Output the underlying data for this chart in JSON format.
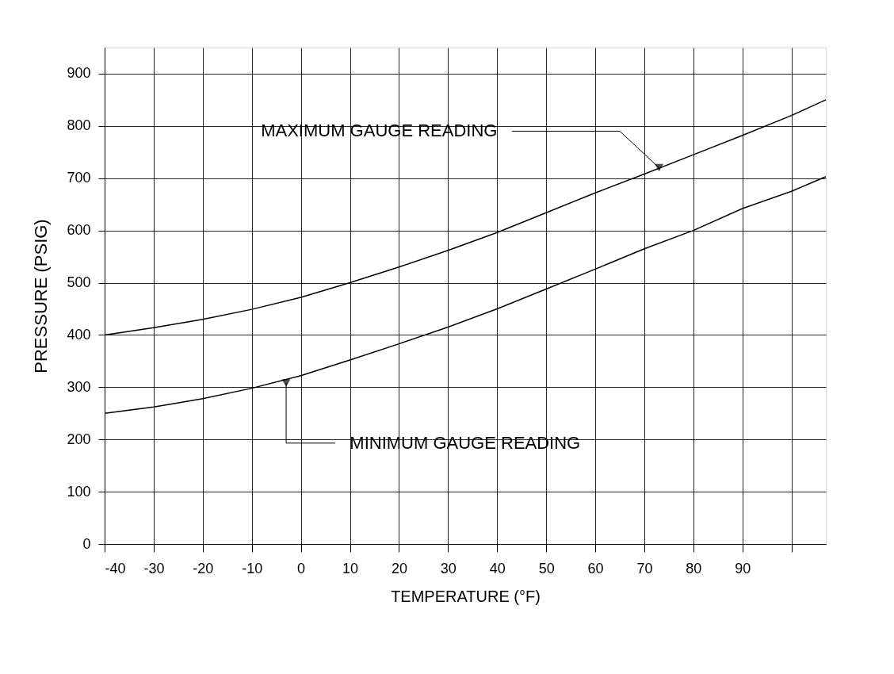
{
  "chart_data": {
    "type": "line",
    "xlabel": "TEMPERATURE (°F)",
    "ylabel": "PRESSURE (PSIG)",
    "x": [
      -40,
      -30,
      -20,
      -10,
      0,
      10,
      20,
      30,
      40,
      50,
      60,
      70,
      80,
      90,
      100,
      107
    ],
    "series": [
      {
        "color": "#000000",
        "values": [
          400,
          414,
          430,
          449,
          472,
          500,
          530,
          562,
          596,
          634,
          672,
          708,
          745,
          782,
          820,
          850
        ]
      },
      {
        "color": "#000000",
        "values": [
          250,
          262,
          278,
          298,
          322,
          352,
          383,
          415,
          450,
          488,
          526,
          565,
          600,
          642,
          675,
          703
        ]
      }
    ],
    "xlim": [
      -40,
      107
    ],
    "xticks": [
      -40,
      -30,
      -20,
      -10,
      0,
      10,
      20,
      30,
      40,
      50,
      60,
      70,
      80,
      90
    ],
    "ylim": [
      0,
      950
    ],
    "yticks": [
      0,
      100,
      200,
      300,
      400,
      500,
      600,
      700,
      800,
      900
    ],
    "grid": true,
    "marker": "none",
    "line_style": "solid",
    "legend": false,
    "annotations": [
      {
        "text": "MAXIMUM GAUGE READING",
        "x": 73,
        "y": 720
      },
      {
        "text": "MINIMUM GAUGE READING",
        "x": -3,
        "y": 308
      }
    ]
  }
}
